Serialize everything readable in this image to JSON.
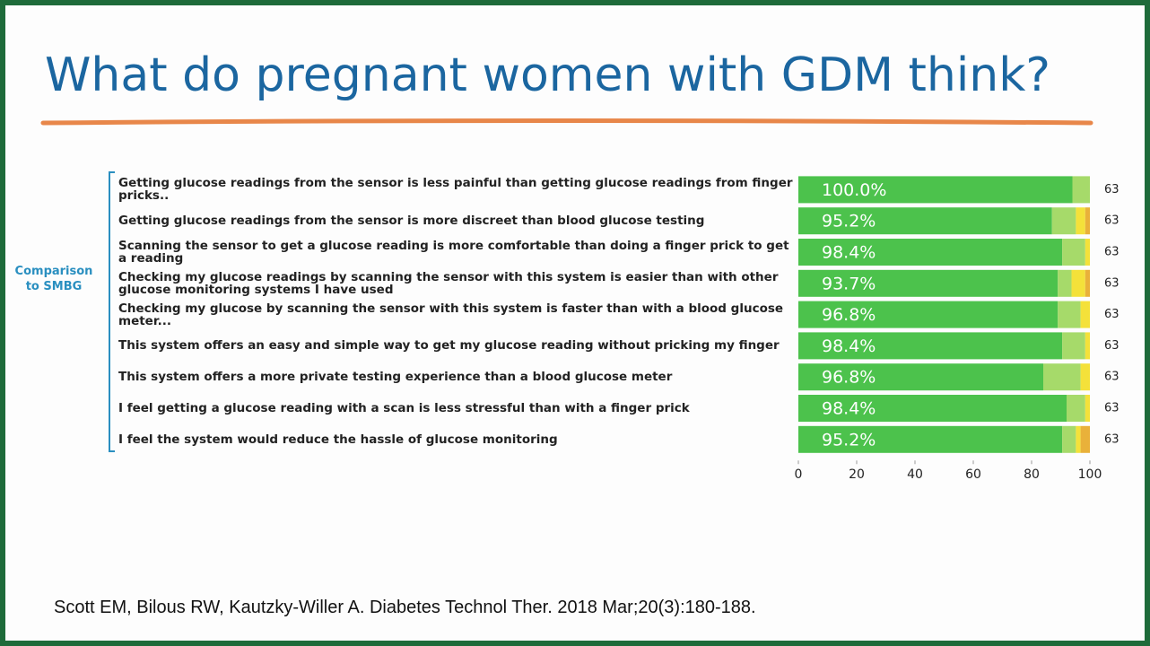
{
  "slide_title": "What do pregnant women with GDM think?",
  "bracket_label": "Comparison to SMBG",
  "citation": "Scott EM, Bilous RW, Kautzky-Willer A. Diabetes Technol Ther. 2018 Mar;20(3):180-188.",
  "chart_data": {
    "type": "stacked-barh",
    "categories": [
      "Getting glucose readings from the sensor is less painful than getting glucose readings from finger pricks..",
      "Getting glucose readings from the sensor is more discreet than blood glucose testing",
      "Scanning the sensor to get a glucose reading is more comfortable than doing a finger prick to get a reading",
      "Checking my glucose readings by scanning the sensor with this system is easier than with other glucose monitoring systems I have used",
      "Checking my glucose by scanning the sensor with this system is faster than with a blood glucose meter...",
      "This system offers an easy and simple way to get my glucose reading without pricking my finger",
      "This system offers a more private testing experience than a blood glucose meter",
      "I feel getting a glucose reading with a scan is less stressful than with a finger prick",
      "I feel the system would reduce the hassle of glucose monitoring"
    ],
    "series": [
      {
        "color": "#4cc24c",
        "values": [
          94,
          87,
          90.5,
          89,
          89,
          90.5,
          84,
          92,
          90.5
        ]
      },
      {
        "color": "#a6da6a",
        "values": [
          6,
          8.2,
          7.9,
          4.7,
          7.8,
          7.9,
          12.8,
          6.4,
          4.7
        ]
      },
      {
        "color": "#f4e13a",
        "values": [
          0,
          3.2,
          1.6,
          4.7,
          3.2,
          1.6,
          3.2,
          1.6,
          1.6
        ]
      },
      {
        "color": "#e9b13a",
        "values": [
          0,
          1.6,
          0,
          1.6,
          0,
          0,
          0,
          0,
          3.2
        ]
      }
    ],
    "totals": {
      "values": [
        100.0,
        95.2,
        98.4,
        93.7,
        96.8,
        98.4,
        96.8,
        98.4,
        95.2
      ],
      "value_labels": [
        "100.0%",
        "95.2%",
        "98.4%",
        "93.7%",
        "96.8%",
        "98.4%",
        "96.8%",
        "98.4%",
        "95.2%"
      ]
    },
    "n": [
      63,
      63,
      63,
      63,
      63,
      63,
      63,
      63,
      63
    ],
    "xlim": [
      0,
      100
    ],
    "xticks": [
      0,
      20,
      40,
      60,
      80,
      100
    ]
  }
}
